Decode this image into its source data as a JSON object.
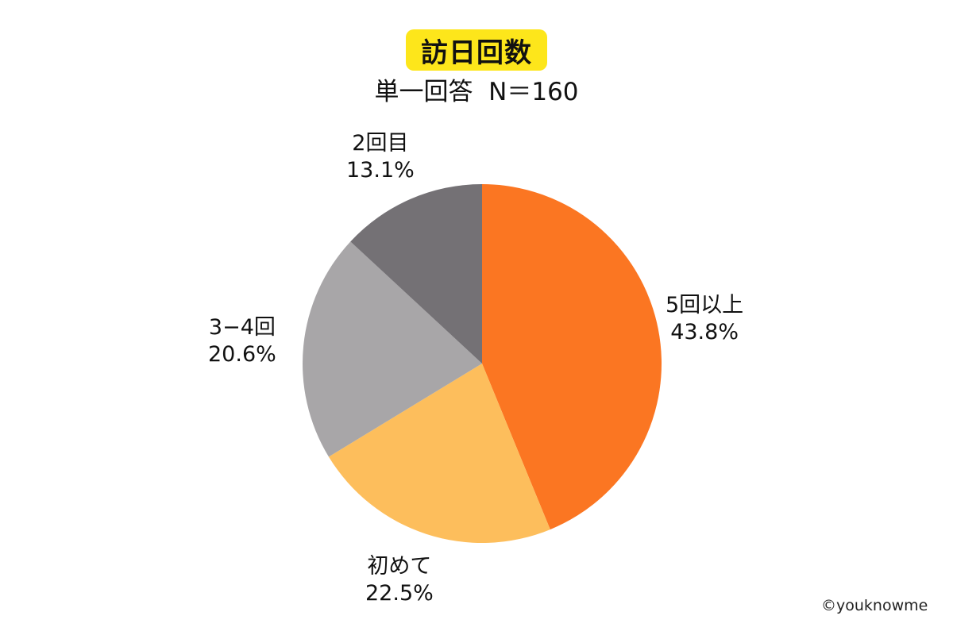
{
  "header": {
    "title": "訪日回数",
    "title_badge_color": "#fde61b",
    "subtitle_type": "単一回答",
    "subtitle_n": "N＝160"
  },
  "footer": {
    "copyright": "©youknowme"
  },
  "chart_data": {
    "type": "pie",
    "title": "訪日回数",
    "subtitle": "単一回答  N＝160",
    "start_angle": "12 o'clock",
    "direction": "clockwise",
    "legend": "none (labels placed beside slices)",
    "categories": [
      "5回以上",
      "初めて",
      "3−4回",
      "2回目"
    ],
    "values": [
      43.8,
      22.5,
      20.6,
      13.1
    ],
    "value_labels": [
      "43.8%",
      "22.5%",
      "20.6%",
      "13.1%"
    ],
    "colors": [
      "#fb7622",
      "#fdbe5c",
      "#a8a6a8",
      "#747175"
    ],
    "slices": [
      {
        "label": "5回以上",
        "value": 43.8,
        "display": "43.8%",
        "color": "#fb7622"
      },
      {
        "label": "初めて",
        "value": 22.5,
        "display": "22.5%",
        "color": "#fdbe5c"
      },
      {
        "label": "3−4回",
        "value": 20.6,
        "display": "20.6%",
        "color": "#a8a6a8"
      },
      {
        "label": "2回目",
        "value": 13.1,
        "display": "13.1%",
        "color": "#747175"
      }
    ]
  }
}
